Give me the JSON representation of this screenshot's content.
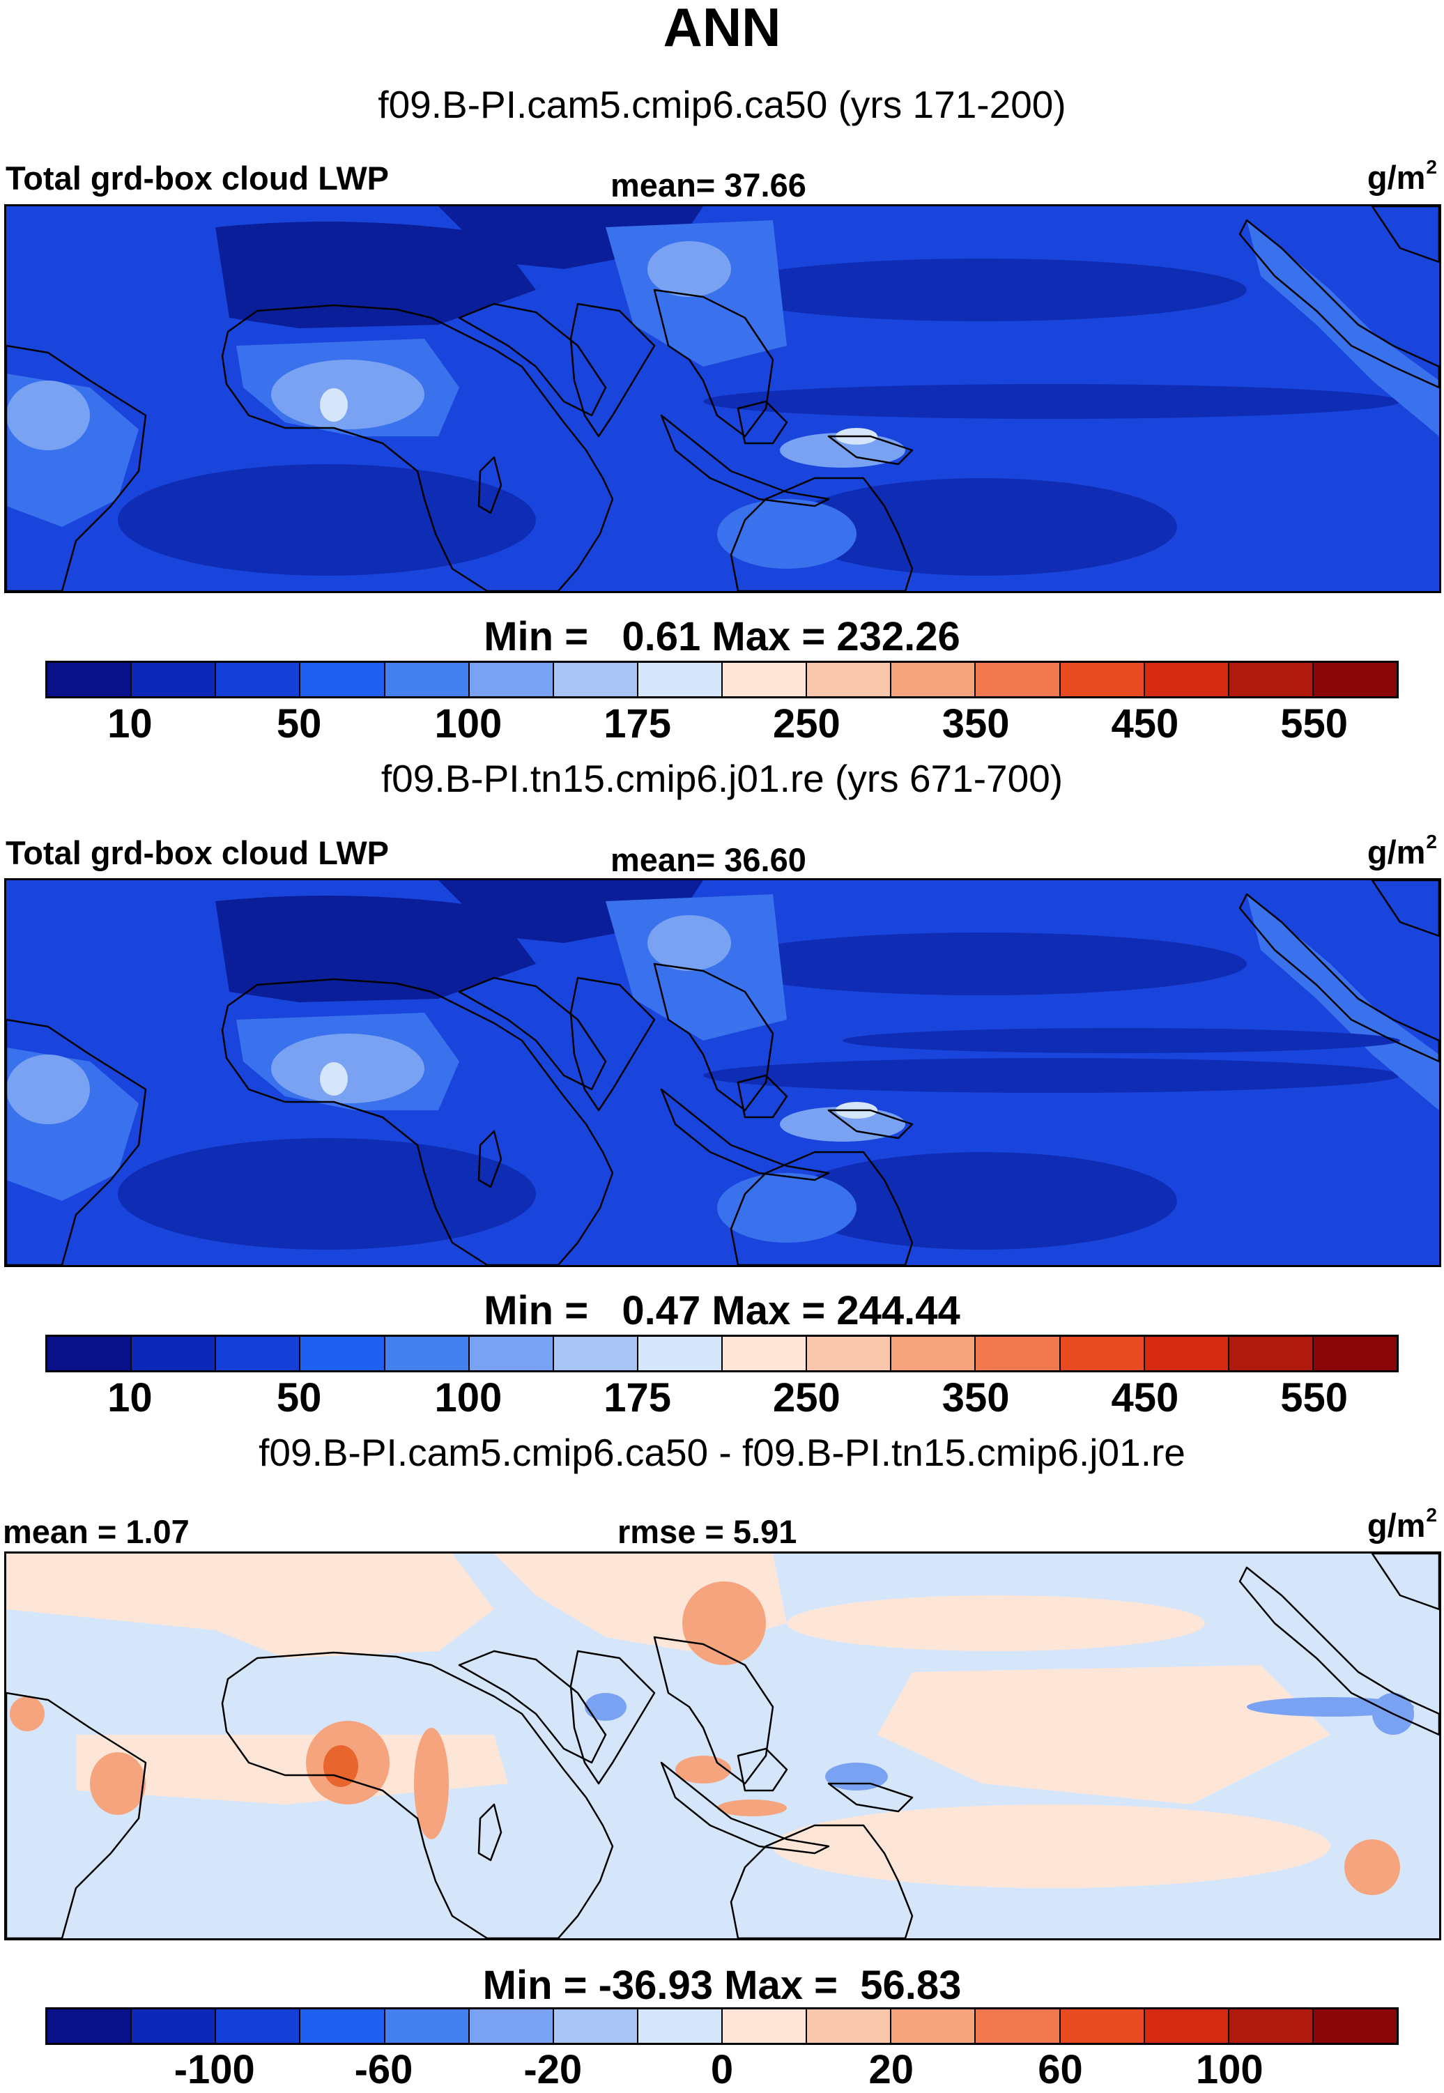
{
  "title": "ANN",
  "case_1_title": "f09.B-PI.cam5.cmip6.ca50 (yrs 171-200)",
  "case_2_title": "f09.B-PI.tn15.cmip6.j01.re (yrs 671-700)",
  "diff_title": "f09.B-PI.cam5.cmip6.ca50 - f09.B-PI.tn15.cmip6.j01.re",
  "panel_1": {
    "variable_label": "Total grd-box cloud LWP",
    "mean_text": "mean=  37.66",
    "units_base": "g/m",
    "units_exp": "2",
    "minmax_text": "Min =   0.61 Max = 232.26"
  },
  "panel_2": {
    "variable_label": "Total grd-box cloud LWP",
    "mean_text": "mean=  36.60",
    "units_base": "g/m",
    "units_exp": "2",
    "minmax_text": "Min =   0.47 Max = 244.44"
  },
  "panel_3": {
    "mean_text": "mean =   1.07",
    "rmse_text": "rmse =   5.91",
    "units_base": "g/m",
    "units_exp": "2",
    "minmax_text": "Min = -36.93 Max =  56.83"
  },
  "colorbar_abs": {
    "colors": [
      "#0a0f8a",
      "#0c28b8",
      "#1440d8",
      "#2060f0",
      "#4480f0",
      "#7aa2f2",
      "#a8c4f4",
      "#d6e6fa",
      "#fde6d8",
      "#f9c8ac",
      "#f5a47e",
      "#f07a4e",
      "#e84a22",
      "#d42a10",
      "#b01a0c",
      "#8a0505"
    ],
    "tick_labels": [
      "10",
      "50",
      "100",
      "175",
      "250",
      "350",
      "450",
      "550"
    ]
  },
  "colorbar_diff": {
    "colors": [
      "#0a0f8a",
      "#0c28b8",
      "#1440d8",
      "#2060f0",
      "#4480f0",
      "#7aa2f2",
      "#a8c4f4",
      "#d6e6fa",
      "#fde6d8",
      "#f9c8ac",
      "#f5a47e",
      "#f07a4e",
      "#e84a22",
      "#d42a10",
      "#b01a0c",
      "#8a0505"
    ],
    "tick_labels": [
      "-100",
      "-60",
      "-20",
      "0",
      "20",
      "60",
      "100"
    ]
  },
  "map_colors": {
    "ocean_abs": "#1a45dc",
    "desert_abs": "#0a1e9a",
    "dry_abs": "#0e2cb4",
    "moist_abs": "#3a72ee",
    "wetter_abs": "#7aa2f2",
    "wettest_abs": "#d6e6fa",
    "diff_pos_small": "#fde6d8",
    "diff_neg_small": "#d6e6fa",
    "diff_pos_med": "#f5a47e",
    "diff_pos_large": "#e8652e",
    "diff_neg_med": "#7aa2f2",
    "coast": "#000000"
  }
}
